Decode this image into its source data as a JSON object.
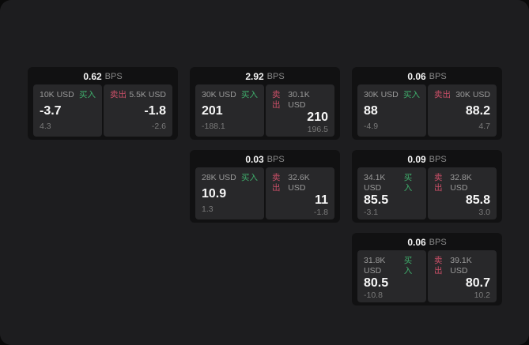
{
  "labels": {
    "bps": "BPS",
    "buy": "买入",
    "sell": "卖出"
  },
  "colors": {
    "panel_bg": "#1d1d1f",
    "card_bg": "#111112",
    "tile_bg": "#28282a",
    "buy_green": "#3fae6c",
    "sell_red": "#cc4f68"
  },
  "cards": [
    {
      "bps": "0.62",
      "buy": {
        "amount": "10K USD",
        "price": "-3.7",
        "delta": "4.3"
      },
      "sell": {
        "amount": "5.5K USD",
        "price": "-1.8",
        "delta": "-2.6"
      }
    },
    {
      "bps": "2.92",
      "buy": {
        "amount": "30K USD",
        "price": "201",
        "delta": "-188.1"
      },
      "sell": {
        "amount": "30.1K USD",
        "price": "210",
        "delta": "196.5"
      }
    },
    {
      "bps": "0.06",
      "buy": {
        "amount": "30K USD",
        "price": "88",
        "delta": "-4.9"
      },
      "sell": {
        "amount": "30K USD",
        "price": "88.2",
        "delta": "4.7"
      }
    },
    {
      "bps": "0.03",
      "buy": {
        "amount": "28K USD",
        "price": "10.9",
        "delta": "1.3"
      },
      "sell": {
        "amount": "32.6K USD",
        "price": "11",
        "delta": "-1.8"
      }
    },
    {
      "bps": "0.09",
      "buy": {
        "amount": "34.1K USD",
        "price": "85.5",
        "delta": "-3.1"
      },
      "sell": {
        "amount": "32.8K USD",
        "price": "85.8",
        "delta": "3.0"
      }
    },
    {
      "bps": "0.06",
      "buy": {
        "amount": "31.8K USD",
        "price": "80.5",
        "delta": "-10.8"
      },
      "sell": {
        "amount": "39.1K USD",
        "price": "80.7",
        "delta": "10.2"
      }
    }
  ]
}
